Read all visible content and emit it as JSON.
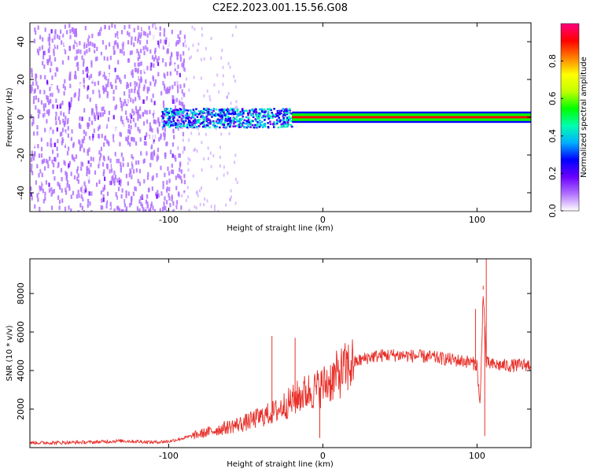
{
  "title": "C2E2.2023.001.15.56.G08",
  "chart_data": [
    {
      "type": "heatmap",
      "xlabel": "Height of straight line (km)",
      "ylabel": "Frequency (Hz)",
      "xlim": [
        -190,
        135
      ],
      "ylim": [
        -50,
        50
      ],
      "x_ticks": [
        -100,
        0,
        100
      ],
      "x_tick_labels": [
        "-100",
        "0",
        "100"
      ],
      "y_ticks": [
        -40,
        -20,
        0,
        20,
        40
      ],
      "y_tick_labels": [
        "-40",
        "-20",
        "0",
        "20",
        "40"
      ],
      "grid": false,
      "colorbar": {
        "label": "Normalized spectral amplitude",
        "range": [
          0,
          1
        ],
        "ticks": [
          0.0,
          0.2,
          0.4,
          0.6,
          0.8
        ],
        "tick_labels": [
          "0.0",
          "0.2",
          "0.4",
          "0.6",
          "0.8"
        ],
        "colors": [
          "#ffffff",
          "#b070ff",
          "#6a00ff",
          "#0000ff",
          "#00b0ff",
          "#00ffb0",
          "#00ff00",
          "#c0ff00",
          "#ffff00",
          "#ff8000",
          "#ff0000",
          "#ff0080"
        ]
      },
      "regions": [
        {
          "x_range": [
            -190,
            -105
          ],
          "freq_range": [
            -50,
            50
          ],
          "level": 0.1,
          "description_of_signal": "broadband noise"
        },
        {
          "x_range": [
            -105,
            -20
          ],
          "freq_range": [
            -5,
            5
          ],
          "level": 0.35
        },
        {
          "x_range": [
            -20,
            135
          ],
          "freq_range": [
            -2,
            2
          ],
          "level": 0.95
        }
      ],
      "ridge_frequency": 0
    },
    {
      "type": "line",
      "xlabel": "Height of straight line (km)",
      "ylabel": "SNR (10 * v/v)",
      "xlim": [
        -190,
        135
      ],
      "ylim": [
        0,
        9800
      ],
      "x_ticks": [
        -100,
        0,
        100
      ],
      "x_tick_labels": [
        "-100",
        "0",
        "100"
      ],
      "y_ticks": [
        2000,
        4000,
        6000,
        8000
      ],
      "y_tick_labels": [
        "2000",
        "4000",
        "6000",
        "8000"
      ],
      "grid": false,
      "series": [
        {
          "color": "#e8302a",
          "x": [
            -190,
            -170,
            -150,
            -130,
            -110,
            -100,
            -90,
            -80,
            -70,
            -60,
            -50,
            -40,
            -30,
            -25,
            -20,
            -15,
            -10,
            -5,
            0,
            5,
            10,
            15,
            20,
            30,
            40,
            50,
            60,
            70,
            80,
            90,
            95,
            100,
            102,
            104,
            106,
            110,
            120,
            135
          ],
          "values": [
            250,
            260,
            280,
            350,
            280,
            320,
            500,
            700,
            900,
            1100,
            1300,
            1600,
            1900,
            2200,
            2400,
            2700,
            2900,
            3000,
            3200,
            3500,
            3800,
            4100,
            4400,
            4700,
            4800,
            4800,
            4750,
            4700,
            4600,
            4500,
            4450,
            4300,
            2000,
            8200,
            4400,
            4300,
            4250,
            4300
          ]
        }
      ],
      "spikes": [
        {
          "x": -33,
          "value": 5800
        },
        {
          "x": -18,
          "value": 5700
        },
        {
          "x": -2,
          "value": 500
        },
        {
          "x": 99,
          "value": 7200
        },
        {
          "x": 104,
          "value": 8400
        },
        {
          "x": 106,
          "value": 9800
        },
        {
          "x": 105,
          "value": 600
        }
      ]
    }
  ]
}
